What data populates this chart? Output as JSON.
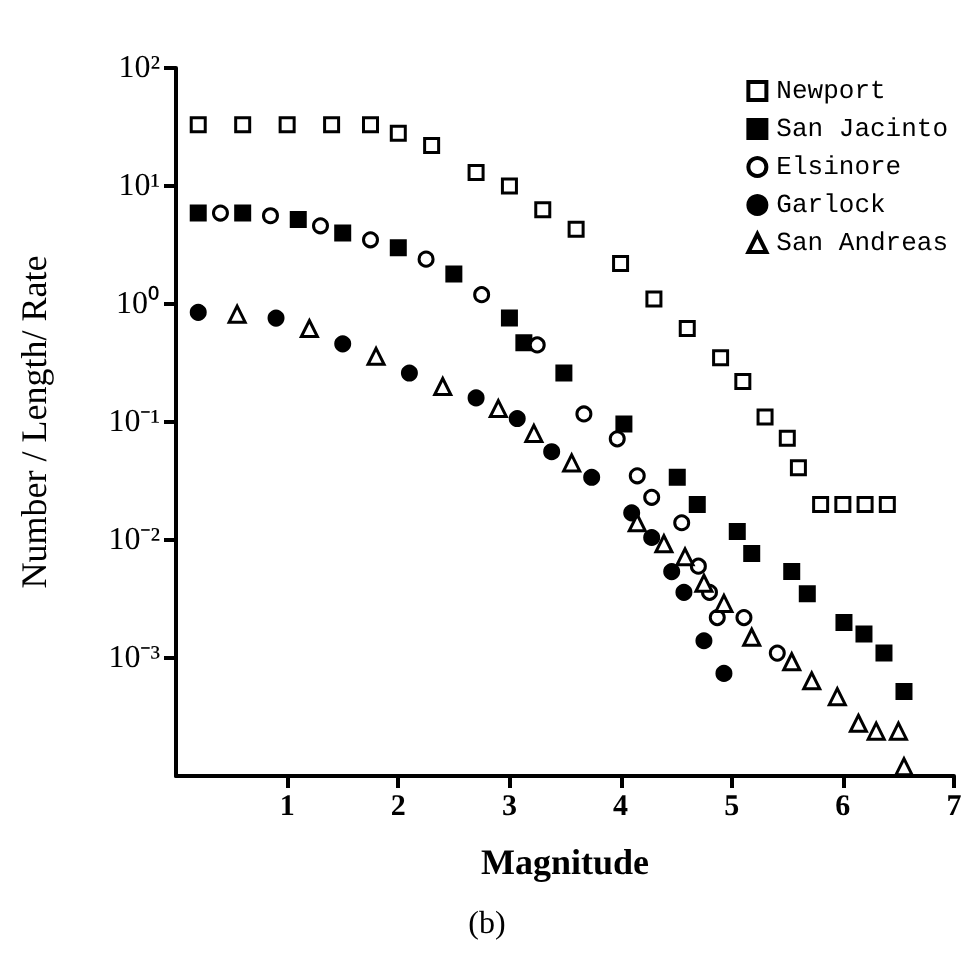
{
  "chart_data": {
    "type": "scatter",
    "xlabel": "Magnitude",
    "ylabel": "Number / Length/ Rate",
    "annotations": [
      "(b)"
    ],
    "log": "y",
    "xlim": [
      0,
      7
    ],
    "xticks": [
      1,
      2,
      3,
      4,
      5,
      6,
      7
    ],
    "ylim": [
      0.0001,
      100
    ],
    "yticks": [
      {
        "value": 100,
        "label": "10²"
      },
      {
        "value": 10,
        "label": "10¹"
      },
      {
        "value": 1,
        "label": "10⁰"
      },
      {
        "value": 0.1,
        "label": "10⁻¹"
      },
      {
        "value": 0.01,
        "label": "10⁻²"
      },
      {
        "value": 0.001,
        "label": "10⁻³"
      }
    ],
    "grid": false,
    "legend": "top right",
    "series": [
      {
        "name": "Newport",
        "color": "#ffffff",
        "marker": "square",
        "x": [
          0.2,
          0.6,
          1.0,
          1.4,
          1.75,
          2.0,
          2.3,
          2.7,
          3.0,
          3.3,
          3.6,
          4.0,
          4.3,
          4.6,
          4.9,
          5.1,
          5.3,
          5.5,
          5.6,
          5.8,
          6.0,
          6.2,
          6.4
        ],
        "values": [
          33,
          33,
          33,
          33,
          33,
          28,
          22,
          13,
          10,
          6.3,
          4.3,
          2.2,
          1.1,
          0.62,
          0.35,
          0.22,
          0.11,
          0.073,
          0.041,
          0.02,
          0.02,
          0.02,
          0.02
        ]
      },
      {
        "name": "San Jacinto",
        "color": "#000000",
        "marker": "square",
        "x": [
          0.2,
          0.6,
          1.1,
          1.5,
          2.0,
          2.5,
          3.0,
          3.13,
          3.49,
          4.03,
          4.51,
          4.69,
          5.05,
          5.18,
          5.54,
          5.68,
          6.01,
          6.19,
          6.37,
          6.55
        ],
        "values": [
          5.9,
          5.9,
          5.2,
          4.0,
          3.0,
          1.8,
          0.76,
          0.47,
          0.26,
          0.096,
          0.034,
          0.02,
          0.0118,
          0.0077,
          0.0054,
          0.0035,
          0.002,
          0.0016,
          0.0011,
          0.00052
        ]
      },
      {
        "name": "Elsinore",
        "color": "#ffffff",
        "marker": "circle",
        "x": [
          0.4,
          0.85,
          1.3,
          1.75,
          2.25,
          2.75,
          3.25,
          3.67,
          3.97,
          4.15,
          4.28,
          4.55,
          4.7,
          4.8,
          4.87,
          5.11,
          5.41
        ],
        "values": [
          5.9,
          5.6,
          4.6,
          3.5,
          2.4,
          1.2,
          0.45,
          0.117,
          0.072,
          0.035,
          0.023,
          0.014,
          0.006,
          0.0036,
          0.0022,
          0.0022,
          0.0011
        ]
      },
      {
        "name": "Garlock",
        "color": "#000000",
        "marker": "circle",
        "x": [
          0.2,
          0.9,
          1.5,
          2.1,
          2.7,
          3.07,
          3.38,
          3.74,
          4.1,
          4.28,
          4.46,
          4.57,
          4.75,
          4.93
        ],
        "values": [
          0.85,
          0.76,
          0.46,
          0.26,
          0.16,
          0.107,
          0.056,
          0.034,
          0.017,
          0.0105,
          0.0054,
          0.0036,
          0.0014,
          0.00074
        ]
      },
      {
        "name": "San Andreas",
        "color": "#ffffff",
        "marker": "triangle",
        "x": [
          0.55,
          1.2,
          1.8,
          2.4,
          2.9,
          3.22,
          3.56,
          4.15,
          4.39,
          4.58,
          4.75,
          4.93,
          5.18,
          5.54,
          5.72,
          5.95,
          6.14,
          6.3,
          6.5,
          6.55
        ],
        "values": [
          0.82,
          0.62,
          0.36,
          0.2,
          0.13,
          0.08,
          0.045,
          0.014,
          0.0093,
          0.0072,
          0.0043,
          0.0029,
          0.0015,
          0.00093,
          0.00064,
          0.00047,
          0.00028,
          0.00024,
          0.00024,
          0.00012
        ]
      }
    ]
  }
}
